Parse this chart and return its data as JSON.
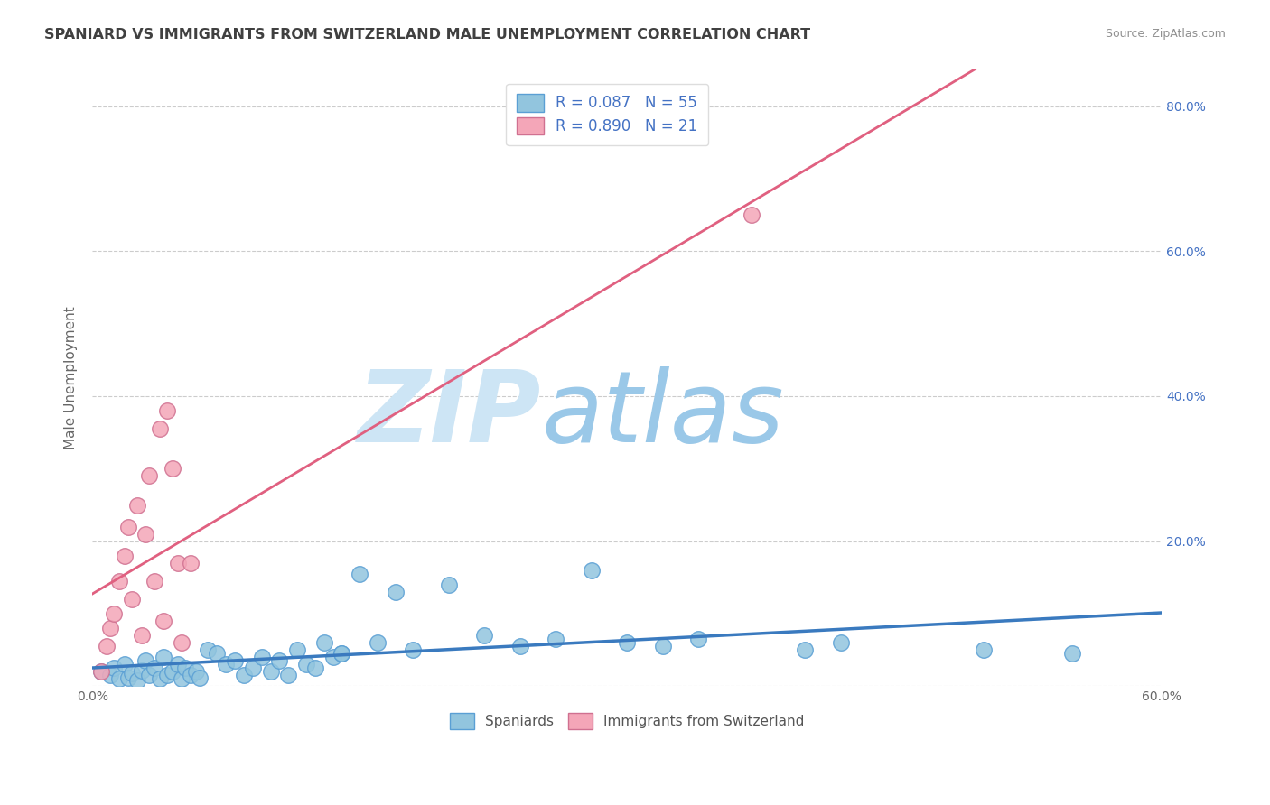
{
  "title": "SPANIARD VS IMMIGRANTS FROM SWITZERLAND MALE UNEMPLOYMENT CORRELATION CHART",
  "source": "Source: ZipAtlas.com",
  "ylabel": "Male Unemployment",
  "xlim": [
    0.0,
    0.6
  ],
  "ylim": [
    0.0,
    0.85
  ],
  "xticks": [
    0.0,
    0.1,
    0.2,
    0.3,
    0.4,
    0.5,
    0.6
  ],
  "xticklabels": [
    "0.0%",
    "",
    "",
    "",
    "",
    "",
    "60.0%"
  ],
  "yticks": [
    0.0,
    0.2,
    0.4,
    0.6,
    0.8
  ],
  "yticklabels": [
    "",
    "20.0%",
    "40.0%",
    "60.0%",
    "80.0%"
  ],
  "blue_R": 0.087,
  "blue_N": 55,
  "pink_R": 0.89,
  "pink_N": 21,
  "blue_color": "#92c5de",
  "pink_color": "#f4a6b8",
  "blue_line_color": "#3a7abf",
  "pink_line_color": "#e06080",
  "watermark_zip": "ZIP",
  "watermark_atlas": "atlas",
  "watermark_color_zip": "#c8e0f4",
  "watermark_color_atlas": "#9bc4e2",
  "title_color": "#404040",
  "source_color": "#909090",
  "legend_text_color": "#4472c4",
  "blue_x": [
    0.005,
    0.01,
    0.012,
    0.015,
    0.018,
    0.02,
    0.022,
    0.025,
    0.028,
    0.03,
    0.032,
    0.035,
    0.038,
    0.04,
    0.042,
    0.045,
    0.048,
    0.05,
    0.052,
    0.055,
    0.058,
    0.06,
    0.065,
    0.07,
    0.075,
    0.08,
    0.085,
    0.09,
    0.095,
    0.1,
    0.105,
    0.11,
    0.115,
    0.12,
    0.125,
    0.13,
    0.135,
    0.14,
    0.15,
    0.16,
    0.17,
    0.18,
    0.2,
    0.22,
    0.24,
    0.26,
    0.28,
    0.3,
    0.32,
    0.34,
    0.4,
    0.42,
    0.5,
    0.55,
    0.14
  ],
  "blue_y": [
    0.02,
    0.015,
    0.025,
    0.01,
    0.03,
    0.012,
    0.018,
    0.008,
    0.022,
    0.035,
    0.015,
    0.025,
    0.01,
    0.04,
    0.015,
    0.02,
    0.03,
    0.01,
    0.025,
    0.015,
    0.02,
    0.012,
    0.05,
    0.045,
    0.03,
    0.035,
    0.015,
    0.025,
    0.04,
    0.02,
    0.035,
    0.015,
    0.05,
    0.03,
    0.025,
    0.06,
    0.04,
    0.045,
    0.155,
    0.06,
    0.13,
    0.05,
    0.14,
    0.07,
    0.055,
    0.065,
    0.16,
    0.06,
    0.055,
    0.065,
    0.05,
    0.06,
    0.05,
    0.045,
    0.045
  ],
  "pink_x": [
    0.005,
    0.008,
    0.01,
    0.012,
    0.015,
    0.018,
    0.02,
    0.022,
    0.025,
    0.028,
    0.03,
    0.032,
    0.035,
    0.038,
    0.04,
    0.042,
    0.045,
    0.048,
    0.05,
    0.055,
    0.37
  ],
  "pink_y": [
    0.02,
    0.055,
    0.08,
    0.1,
    0.145,
    0.18,
    0.22,
    0.12,
    0.25,
    0.07,
    0.21,
    0.29,
    0.145,
    0.355,
    0.09,
    0.38,
    0.3,
    0.17,
    0.06,
    0.17,
    0.65
  ]
}
